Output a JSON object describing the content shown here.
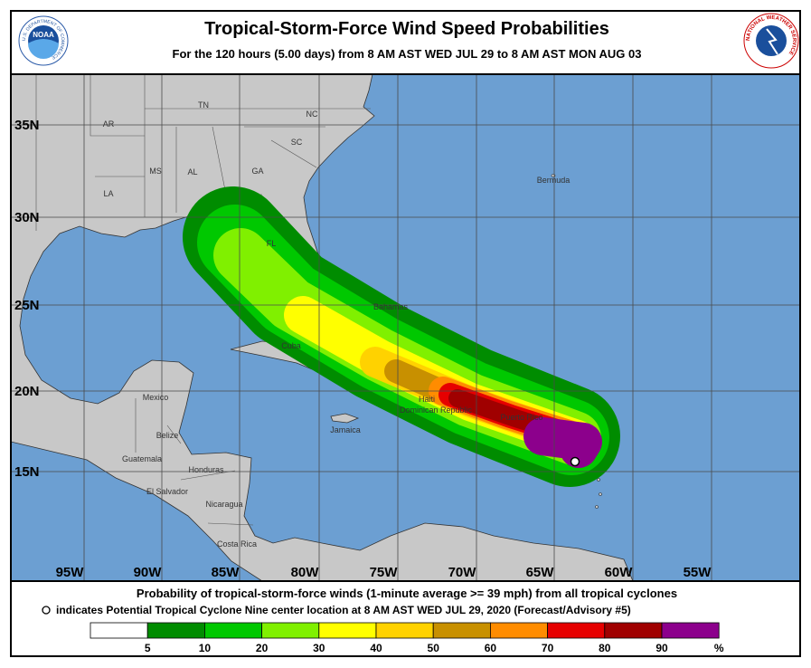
{
  "header": {
    "title": "Tropical-Storm-Force Wind Speed Probabilities",
    "subtitle": "For the 120 hours (5.00 days) from 8 AM AST WED JUL 29 to 8 AM AST MON AUG 03"
  },
  "logos": {
    "noaa": "NOAA",
    "noaa_ring": "U.S. DEPARTMENT OF COMMERCE",
    "nws_ring": "NATIONAL WEATHER SERVICE"
  },
  "map": {
    "latitude_labels": [
      "35N",
      "30N",
      "25N",
      "20N",
      "15N"
    ],
    "longitude_labels": [
      "95W",
      "90W",
      "85W",
      "80W",
      "75W",
      "70W",
      "65W",
      "60W",
      "55W"
    ],
    "places": [
      "AR",
      "TN",
      "NC",
      "SC",
      "MS",
      "AL",
      "GA",
      "LA",
      "FL",
      "Bermuda",
      "Bahamas",
      "Cuba",
      "Mexico",
      "Belize",
      "Guatemala",
      "Honduras",
      "El Salvador",
      "Nicaragua",
      "Costa Rica",
      "Jamaica",
      "Haiti",
      "Dominican Republic",
      "Puerto Rico"
    ]
  },
  "footer": {
    "description": "Probability of tropical-storm-force winds (1-minute average >= 39 mph) from all tropical cyclones",
    "center_note": "indicates Potential Tropical Cyclone Nine center location at 8 AM AST WED JUL 29, 2020 (Forecast/Advisory #5)"
  },
  "legend": {
    "colors": [
      "#ffffff",
      "#008c00",
      "#00c800",
      "#80f000",
      "#ffff00",
      "#ffd200",
      "#c89000",
      "#ff8c00",
      "#e60000",
      "#a00000",
      "#8c008c"
    ],
    "ticks": [
      5,
      10,
      20,
      30,
      40,
      50,
      60,
      70,
      80,
      90
    ],
    "unit": "%"
  }
}
